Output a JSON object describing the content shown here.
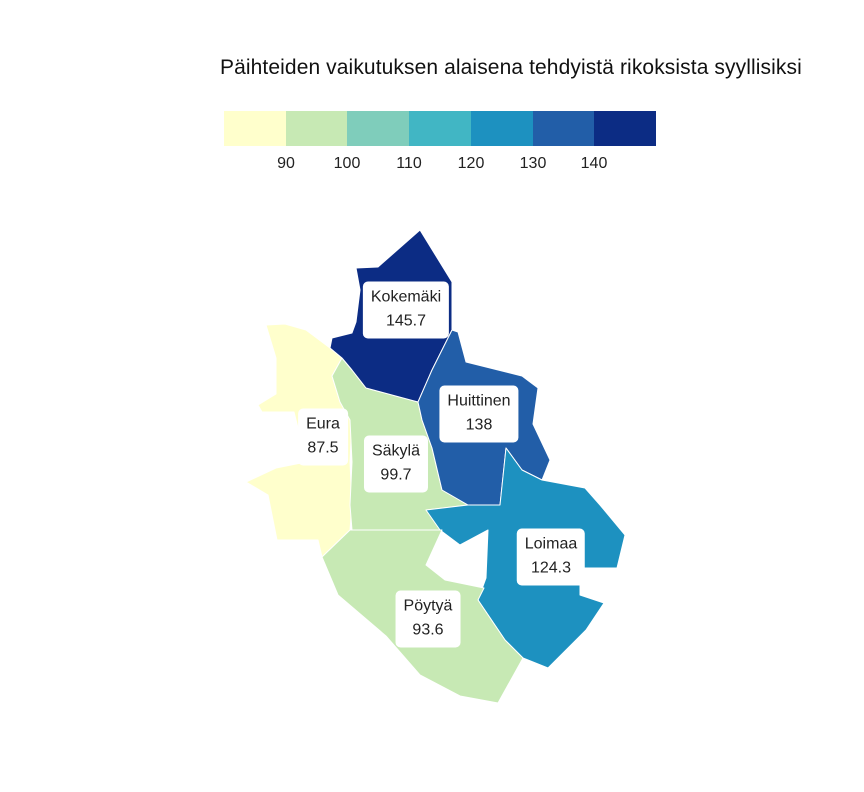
{
  "title": "Päihteiden vaikutuksen alaisena tehdyistä rikoksista syyllisiksi",
  "legend": {
    "colors": [
      "#ffffcc",
      "#c7e9b4",
      "#7fcdbb",
      "#41b6c4",
      "#1d91c0",
      "#225ea8",
      "#0c2c84"
    ],
    "ticks": [
      "90",
      "100",
      "110",
      "120",
      "130",
      "140"
    ]
  },
  "regions": [
    {
      "id": "kokemaki",
      "name": "Kokemäki",
      "value": "145.7",
      "color": "#0c2c84"
    },
    {
      "id": "huittinen",
      "name": "Huittinen",
      "value": "138",
      "color": "#225ea8"
    },
    {
      "id": "eura",
      "name": "Eura",
      "value": "87.5",
      "color": "#ffffcc"
    },
    {
      "id": "sakyla",
      "name": "Säkylä",
      "value": "99.7",
      "color": "#c7e9b4"
    },
    {
      "id": "loimaa",
      "name": "Loimaa",
      "value": "124.3",
      "color": "#1d91c0"
    },
    {
      "id": "poytya",
      "name": "Pöytyä",
      "value": "93.6",
      "color": "#c7e9b4"
    }
  ]
}
